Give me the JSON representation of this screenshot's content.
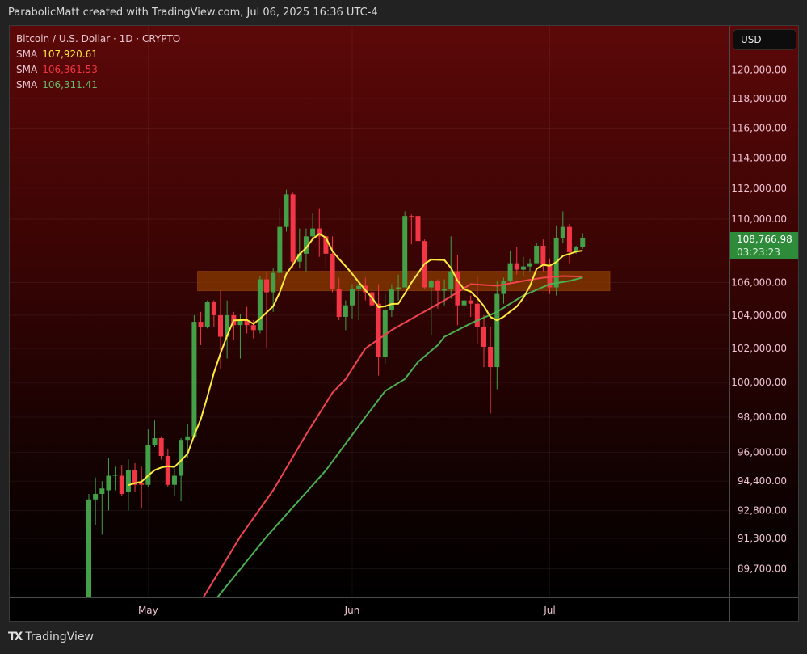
{
  "header": {
    "attribution": "ParabolicMatt created with TradingView.com, Jul 06, 2025 16:36 UTC-4"
  },
  "legend": {
    "symbol": "Bitcoin / U.S. Dollar · 1D · CRYPTO",
    "sma": [
      {
        "label": "SMA",
        "value": "107,920.61",
        "color": "#ffeb3b"
      },
      {
        "label": "SMA",
        "value": "106,361.53",
        "color": "#f23645"
      },
      {
        "label": "SMA",
        "value": "106,311.41",
        "color": "#4caf50"
      }
    ]
  },
  "currency_button": "USD",
  "last_price": {
    "value": "108,766.98",
    "countdown": "03:23:23",
    "color": "#2e8b3a"
  },
  "footer": {
    "brand": "TradingView",
    "logo": "17"
  },
  "colors": {
    "up": "#43a047",
    "down": "#f23645",
    "axis_text": "#f0c4d4",
    "zone": "#8a3a00"
  },
  "chart_data": {
    "type": "candlestick",
    "title": "Bitcoin / U.S. Dollar · 1D · CRYPTO",
    "y_scale": "log",
    "ylim": [
      88000,
      122000
    ],
    "grid": true,
    "y_ticks": [
      "120,000.00",
      "118,000.00",
      "116,000.00",
      "114,000.00",
      "112,000.00",
      "110,000.00",
      "106,000.00",
      "104,000.00",
      "102,000.00",
      "100,000.00",
      "98,000.00",
      "96,000.00",
      "94,400.00",
      "92,800.00",
      "91,300.00",
      "89,700.00"
    ],
    "x_ticks": [
      {
        "label": "May",
        "date": "2025-05-01"
      },
      {
        "label": "Jun",
        "date": "2025-06-01"
      },
      {
        "label": "Jul",
        "date": "2025-07-01"
      }
    ],
    "candles_fields": [
      "date",
      "open",
      "high",
      "low",
      "close"
    ],
    "candles": [
      [
        "2025-04-22",
        88200,
        93700,
        87800,
        93400
      ],
      [
        "2025-04-23",
        93400,
        94600,
        92000,
        93700
      ],
      [
        "2025-04-24",
        93700,
        94400,
        91500,
        94000
      ],
      [
        "2025-04-25",
        93900,
        95700,
        92800,
        94700
      ],
      [
        "2025-04-26",
        94700,
        95200,
        93900,
        94750
      ],
      [
        "2025-04-27",
        94700,
        95300,
        93600,
        93700
      ],
      [
        "2025-04-28",
        93800,
        95600,
        92800,
        95000
      ],
      [
        "2025-04-29",
        95000,
        95400,
        93800,
        94200
      ],
      [
        "2025-04-30",
        94300,
        95200,
        92900,
        94200
      ],
      [
        "2025-05-01",
        94200,
        97300,
        94100,
        96400
      ],
      [
        "2025-05-02",
        96400,
        97800,
        96300,
        96800
      ],
      [
        "2025-05-03",
        96800,
        96900,
        95600,
        95800
      ],
      [
        "2025-05-04",
        95800,
        96200,
        94100,
        94200
      ],
      [
        "2025-05-05",
        94200,
        95100,
        93600,
        94700
      ],
      [
        "2025-05-06",
        94700,
        96800,
        93300,
        96700
      ],
      [
        "2025-05-07",
        96700,
        97600,
        95700,
        96900
      ],
      [
        "2025-05-08",
        96900,
        104000,
        96800,
        103600
      ],
      [
        "2025-05-09",
        103600,
        104200,
        102200,
        103300
      ],
      [
        "2025-05-10",
        103300,
        104900,
        103200,
        104800
      ],
      [
        "2025-05-11",
        104800,
        104900,
        103300,
        104000
      ],
      [
        "2025-05-12",
        104000,
        105500,
        100800,
        102700
      ],
      [
        "2025-05-13",
        102700,
        104900,
        101400,
        104000
      ],
      [
        "2025-05-14",
        104000,
        104200,
        102500,
        103400
      ],
      [
        "2025-05-15",
        103400,
        104100,
        101400,
        103700
      ],
      [
        "2025-05-16",
        103700,
        104500,
        102900,
        103400
      ],
      [
        "2025-05-17",
        103400,
        103700,
        102600,
        103100
      ],
      [
        "2025-05-18",
        103100,
        106400,
        102900,
        106200
      ],
      [
        "2025-05-19",
        106200,
        106700,
        102000,
        105400
      ],
      [
        "2025-05-20",
        105400,
        106900,
        104200,
        106600
      ],
      [
        "2025-05-21",
        106600,
        110700,
        106100,
        109500
      ],
      [
        "2025-05-22",
        109500,
        111900,
        109200,
        111600
      ],
      [
        "2025-05-23",
        111600,
        111700,
        106900,
        107300
      ],
      [
        "2025-05-24",
        107300,
        109400,
        106900,
        107800
      ],
      [
        "2025-05-25",
        107800,
        109400,
        106700,
        108900
      ],
      [
        "2025-05-26",
        108900,
        110400,
        108700,
        109400
      ],
      [
        "2025-05-27",
        109400,
        110700,
        107600,
        108900
      ],
      [
        "2025-05-28",
        108900,
        109200,
        106800,
        107800
      ],
      [
        "2025-05-29",
        107800,
        108900,
        105400,
        105600
      ],
      [
        "2025-05-30",
        105600,
        106300,
        103700,
        103900
      ],
      [
        "2025-05-31",
        103900,
        104900,
        103100,
        104600
      ],
      [
        "2025-06-01",
        104600,
        105900,
        103800,
        105600
      ],
      [
        "2025-06-02",
        105600,
        105900,
        103700,
        105800
      ],
      [
        "2025-06-03",
        105800,
        106300,
        104900,
        105400
      ],
      [
        "2025-06-04",
        105400,
        105900,
        104200,
        104600
      ],
      [
        "2025-06-05",
        104700,
        105900,
        100400,
        101500
      ],
      [
        "2025-06-06",
        101500,
        105300,
        101100,
        104300
      ],
      [
        "2025-06-07",
        104300,
        105900,
        103900,
        105600
      ],
      [
        "2025-06-08",
        105600,
        106500,
        104900,
        105700
      ],
      [
        "2025-06-09",
        105700,
        110500,
        105700,
        110200
      ],
      [
        "2025-06-10",
        110200,
        110300,
        108400,
        110100
      ],
      [
        "2025-06-11",
        110200,
        110300,
        108100,
        108600
      ],
      [
        "2025-06-12",
        108600,
        108700,
        105600,
        105700
      ],
      [
        "2025-06-13",
        105700,
        106200,
        102800,
        106100
      ],
      [
        "2025-06-14",
        106100,
        106200,
        104400,
        105500
      ],
      [
        "2025-06-15",
        105500,
        106200,
        104600,
        105600
      ],
      [
        "2025-06-16",
        105600,
        108900,
        105000,
        106700
      ],
      [
        "2025-06-17",
        106700,
        107700,
        103400,
        104600
      ],
      [
        "2025-06-18",
        104600,
        105500,
        103500,
        104900
      ],
      [
        "2025-06-19",
        104900,
        105200,
        103900,
        104700
      ],
      [
        "2025-06-20",
        104700,
        106400,
        102300,
        103300
      ],
      [
        "2025-06-21",
        103300,
        104000,
        100900,
        102100
      ],
      [
        "2025-06-22",
        102100,
        103300,
        98200,
        100900
      ],
      [
        "2025-06-23",
        100900,
        106100,
        99600,
        105300
      ],
      [
        "2025-06-24",
        105300,
        106300,
        104700,
        106100
      ],
      [
        "2025-06-25",
        106100,
        108000,
        105900,
        107200
      ],
      [
        "2025-06-26",
        107200,
        108200,
        106500,
        106800
      ],
      [
        "2025-06-27",
        106800,
        107600,
        106400,
        107000
      ],
      [
        "2025-06-28",
        107000,
        107500,
        106700,
        107200
      ],
      [
        "2025-06-29",
        107200,
        108500,
        107200,
        108300
      ],
      [
        "2025-06-30",
        108300,
        108700,
        106700,
        107100
      ],
      [
        "2025-07-01",
        107100,
        107500,
        105300,
        105700
      ],
      [
        "2025-07-02",
        105700,
        109600,
        105200,
        108800
      ],
      [
        "2025-07-03",
        108800,
        110500,
        108500,
        109500
      ],
      [
        "2025-07-04",
        109500,
        109700,
        107200,
        107900
      ],
      [
        "2025-07-05",
        107900,
        108300,
        107800,
        108200
      ],
      [
        "2025-07-06",
        108200,
        109100,
        108100,
        108766.98
      ]
    ],
    "sma_red": [
      [
        "2025-05-09",
        88000
      ],
      [
        "2025-05-15",
        91400
      ],
      [
        "2025-05-20",
        93900
      ],
      [
        "2025-05-25",
        97000
      ],
      [
        "2025-05-29",
        99400
      ],
      [
        "2025-05-31",
        100200
      ],
      [
        "2025-06-03",
        102000
      ],
      [
        "2025-06-07",
        103100
      ],
      [
        "2025-06-11",
        104000
      ],
      [
        "2025-06-15",
        104900
      ],
      [
        "2025-06-19",
        105900
      ],
      [
        "2025-06-23",
        105800
      ],
      [
        "2025-06-27",
        106100
      ],
      [
        "2025-06-30",
        106300
      ],
      [
        "2025-07-03",
        106400
      ],
      [
        "2025-07-06",
        106361.53
      ]
    ],
    "sma_green": [
      [
        "2025-05-11",
        88000
      ],
      [
        "2025-05-19",
        91400
      ],
      [
        "2025-05-28",
        95000
      ],
      [
        "2025-06-03",
        98000
      ],
      [
        "2025-06-06",
        99500
      ],
      [
        "2025-06-09",
        100200
      ],
      [
        "2025-06-11",
        101200
      ],
      [
        "2025-06-14",
        102200
      ],
      [
        "2025-06-15",
        102700
      ],
      [
        "2025-06-19",
        103500
      ],
      [
        "2025-06-23",
        104200
      ],
      [
        "2025-06-27",
        105200
      ],
      [
        "2025-07-01",
        105900
      ],
      [
        "2025-07-04",
        106100
      ],
      [
        "2025-07-06",
        106311.41
      ]
    ],
    "zone": {
      "from": "2025-05-09",
      "to": "2025-07-10",
      "low": 105500,
      "high": 106700
    }
  }
}
